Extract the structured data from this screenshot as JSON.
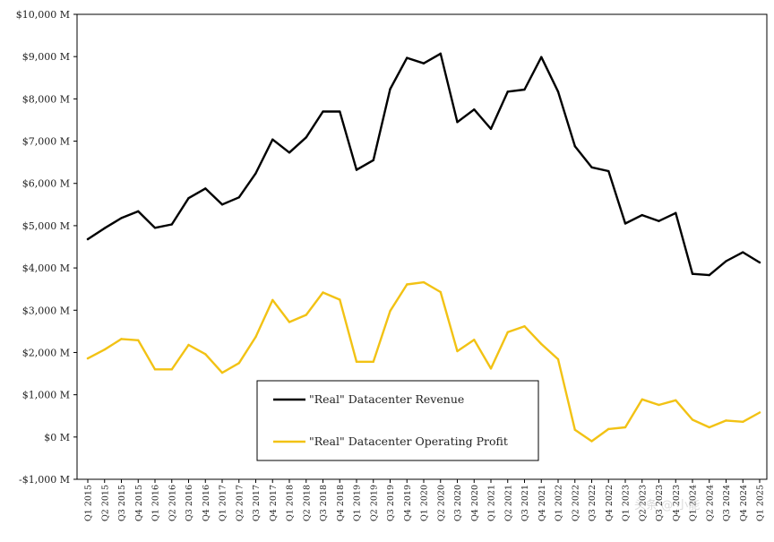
{
  "chart_data": {
    "type": "line",
    "title": "",
    "xlabel": "",
    "ylabel": "",
    "ylim": [
      -1000,
      10000
    ],
    "y_ticks": [
      {
        "value": 10000,
        "label": "$10,000 M"
      },
      {
        "value": 9000,
        "label": "$9,000 M"
      },
      {
        "value": 8000,
        "label": "$8,000 M"
      },
      {
        "value": 7000,
        "label": "$7,000 M"
      },
      {
        "value": 6000,
        "label": "$6,000 M"
      },
      {
        "value": 5000,
        "label": "$5,000 M"
      },
      {
        "value": 4000,
        "label": "$4,000 M"
      },
      {
        "value": 3000,
        "label": "$3,000 M"
      },
      {
        "value": 2000,
        "label": "$2,000 M"
      },
      {
        "value": 1000,
        "label": "$1,000 M"
      },
      {
        "value": 0,
        "label": "$0 M"
      },
      {
        "value": -1000,
        "label": "-$1,000 M"
      }
    ],
    "grid": false,
    "legend_position": "bottom-center",
    "categories": [
      "Q1 2015",
      "Q2 2015",
      "Q3 2015",
      "Q4 2015",
      "Q1 2016",
      "Q2 2016",
      "Q3 2016",
      "Q4 2016",
      "Q1 2017",
      "Q2 2017",
      "Q3 2017",
      "Q4 2017",
      "Q1 2018",
      "Q2 2018",
      "Q3 2018",
      "Q4 2018",
      "Q1 2019",
      "Q2 2019",
      "Q3 2019",
      "Q4 2019",
      "Q1 2020",
      "Q2 2020",
      "Q3 2020",
      "Q4 2020",
      "Q1 2021",
      "Q2 2021",
      "Q3 2021",
      "Q4 2021",
      "Q1 2022",
      "Q2 2022",
      "Q3 2022",
      "Q4 2022",
      "Q1 2023",
      "Q2 2023",
      "Q3 2023",
      "Q4 2023",
      "Q1 2024",
      "Q2 2024",
      "Q3 2024",
      "Q4 2024",
      "Q1 2025"
    ],
    "series": [
      {
        "name": "\"Real\" Datacenter Revenue",
        "color": "#000000",
        "values": [
          4680,
          4940,
          5180,
          5340,
          4950,
          5030,
          5650,
          5880,
          5500,
          5670,
          6240,
          7040,
          6730,
          7090,
          7700,
          7700,
          6320,
          6550,
          8230,
          8970,
          8840,
          9070,
          7450,
          7750,
          7290,
          8170,
          8220,
          8990,
          8170,
          6880,
          6380,
          6290,
          5050,
          5250,
          5110,
          5300,
          3860,
          3830,
          4160,
          4370,
          4130
        ]
      },
      {
        "name": "\"Real\" Datacenter Operating Profit",
        "color": "#f2c214",
        "values": [
          1860,
          2070,
          2320,
          2290,
          1600,
          1600,
          2180,
          1960,
          1520,
          1750,
          2370,
          3240,
          2720,
          2890,
          3420,
          3250,
          1780,
          1780,
          2980,
          3610,
          3660,
          3430,
          2030,
          2300,
          1620,
          2480,
          2620,
          2200,
          1840,
          170,
          -100,
          190,
          230,
          890,
          760,
          870,
          410,
          230,
          390,
          360,
          580
        ]
      }
    ]
  },
  "watermark": "头条 @ 小能"
}
